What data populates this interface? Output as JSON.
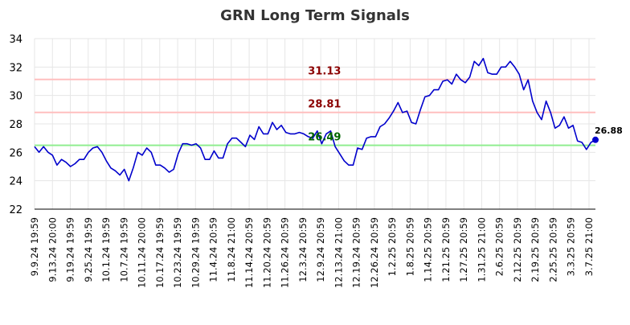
{
  "chart_data": {
    "type": "line",
    "title": "GRN Long Term Signals",
    "xlabel": "",
    "ylabel": "",
    "ylim": [
      22,
      34
    ],
    "yticks": [
      22,
      24,
      26,
      28,
      30,
      32,
      34
    ],
    "grid": true,
    "x_tick_labels": [
      "9.9.24 19:59",
      "9.13.24 20:00",
      "9.19.24 19:59",
      "9.25.24 19:59",
      "10.1.24 19:59",
      "10.7.24 19:59",
      "10.11.24 20:00",
      "10.17.24 19:59",
      "10.23.24 19:59",
      "10.29.24 19:59",
      "11.4.24 20:59",
      "11.8.24 21:00",
      "11.14.24 20:59",
      "11.20.24 20:59",
      "11.26.24 20:59",
      "12.3.24 20:59",
      "12.9.24 20:59",
      "12.13.24 21:00",
      "12.19.24 20:59",
      "12.26.24 20:59",
      "1.2.25 20:59",
      "1.8.25 20:59",
      "1.14.25 20:59",
      "1.21.25 20:59",
      "1.27.25 20:59",
      "1.31.25 21:00",
      "2.6.25 20:59",
      "2.12.25 20:59",
      "2.19.25 20:59",
      "2.25.25 20:59",
      "3.3.25 20:59",
      "3.7.25 21:00"
    ],
    "series": [
      {
        "color": "#0000cc",
        "values": [
          26.4,
          26.0,
          26.4,
          26.0,
          25.8,
          25.1,
          25.5,
          25.3,
          25.0,
          25.2,
          25.5,
          25.5,
          26.0,
          26.3,
          26.4,
          26.0,
          25.4,
          24.9,
          24.7,
          24.4,
          24.8,
          24.0,
          24.9,
          26.0,
          25.8,
          26.3,
          26.0,
          25.1,
          25.1,
          24.9,
          24.6,
          24.8,
          25.9,
          26.6,
          26.6,
          26.5,
          26.6,
          26.3,
          25.5,
          25.5,
          26.1,
          25.6,
          25.6,
          26.6,
          27.0,
          27.0,
          26.7,
          26.4,
          27.2,
          26.9,
          27.8,
          27.3,
          27.3,
          28.1,
          27.6,
          27.9,
          27.4,
          27.3,
          27.3,
          27.4,
          27.3,
          27.1,
          27.0,
          27.5,
          26.6,
          27.3,
          27.5,
          26.4,
          25.9,
          25.4,
          25.1,
          25.1,
          26.3,
          26.2,
          27.0,
          27.1,
          27.1,
          27.8,
          28.0,
          28.4,
          28.9,
          29.5,
          28.8,
          28.9,
          28.1,
          28.0,
          29.0,
          29.9,
          30.0,
          30.4,
          30.4,
          31.0,
          31.1,
          30.8,
          31.5,
          31.1,
          30.9,
          31.3,
          32.4,
          32.1,
          32.6,
          31.6,
          31.5,
          31.5,
          32.0,
          32.0,
          32.4,
          32.0,
          31.5,
          30.4,
          31.1,
          29.6,
          28.8,
          28.3,
          29.6,
          28.8,
          27.7,
          27.9,
          28.5,
          27.7,
          27.9,
          26.8,
          26.7,
          26.2,
          26.7,
          26.88
        ]
      }
    ],
    "reference_lines": [
      {
        "value": 31.13,
        "label": "31.13",
        "line_color": "#ffbfbf",
        "label_color": "#8b0000"
      },
      {
        "value": 28.81,
        "label": "28.81",
        "line_color": "#ffbfbf",
        "label_color": "#8b0000"
      },
      {
        "value": 26.49,
        "label": "26.49",
        "line_color": "#90ee90",
        "label_color": "#006400"
      }
    ],
    "last_point": {
      "value": 26.88,
      "label": "26.88",
      "color": "#0000cc"
    }
  }
}
